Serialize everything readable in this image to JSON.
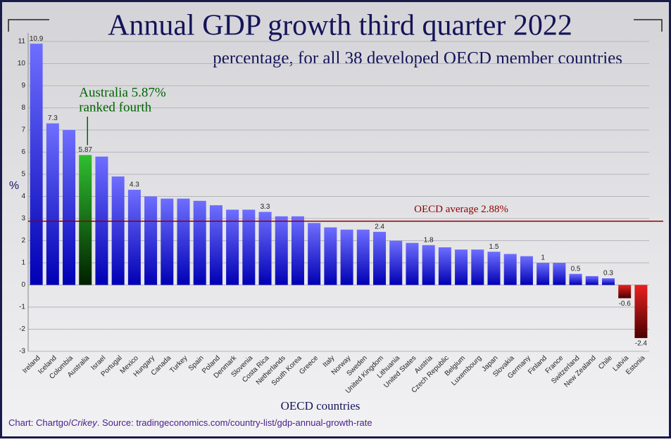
{
  "chart_data": {
    "type": "bar",
    "title": "Annual GDP growth third quarter 2022",
    "subtitle": "percentage, for all 38 developed OECD member countries",
    "y_label": "%",
    "x_label": "OECD countries",
    "source": [
      "Chart: Chartgo/",
      "Crikey",
      ". Source: tradingeconomics.com/country-list/gdp-annual-growth-rate"
    ],
    "categories": [
      "Ireland",
      "Iceland",
      "Colombia",
      "Australia",
      "Israel",
      "Portugal",
      "Mexico",
      "Hungary",
      "Canada",
      "Turkey",
      "Spain",
      "Poland",
      "Denmark",
      "Slovenia",
      "Costa Rica",
      "Netherlands",
      "South Korea",
      "Greece",
      "Italy",
      "Norway",
      "Sweden",
      "United Kingdom",
      "Lithuania",
      "United States",
      "Austria",
      "Czech Republic",
      "Belgium",
      "Luxembourg",
      "Japan",
      "Slovakia",
      "Germany",
      "Finland",
      "France",
      "Switzerland",
      "New Zealand",
      "Chile",
      "Latvia",
      "Estonia"
    ],
    "values": [
      10.9,
      7.3,
      7.0,
      5.87,
      5.8,
      4.9,
      4.3,
      4.0,
      3.9,
      3.9,
      3.8,
      3.6,
      3.4,
      3.4,
      3.3,
      3.1,
      3.1,
      2.8,
      2.6,
      2.5,
      2.5,
      2.4,
      2.0,
      1.9,
      1.8,
      1.7,
      1.6,
      1.6,
      1.5,
      1.4,
      1.3,
      1.0,
      1.0,
      0.5,
      0.4,
      0.3,
      -0.6,
      -2.4
    ],
    "value_labels": [
      "10.9",
      "7.3",
      null,
      "5.87",
      null,
      null,
      "4.3",
      null,
      null,
      null,
      null,
      null,
      null,
      null,
      "3.3",
      null,
      null,
      null,
      null,
      null,
      null,
      "2.4",
      null,
      null,
      "1.8",
      null,
      null,
      null,
      "1.5",
      null,
      null,
      "1",
      null,
      "0.5",
      null,
      "0.3",
      "-0.6",
      "-2.4"
    ],
    "bar_gradient": [
      "#6e6eff",
      "#0000b4"
    ],
    "highlight": "Australia",
    "highlight_gradient": [
      "#2fbf2f",
      "#002000"
    ],
    "negative_gradient": [
      "#e82020",
      "#4a0000"
    ],
    "annotation": [
      "Australia 5.87%",
      "ranked fourth"
    ],
    "annotation_color": "#006400",
    "reference_line": {
      "value": 2.88,
      "label": "OECD average 2.88%",
      "color": "#8b0000"
    },
    "ylim": [
      -3,
      11
    ],
    "yticks": [
      -3,
      -2,
      -1,
      0,
      1,
      2,
      3,
      4,
      5,
      6,
      7,
      8,
      9,
      10,
      11
    ],
    "grid": true
  }
}
